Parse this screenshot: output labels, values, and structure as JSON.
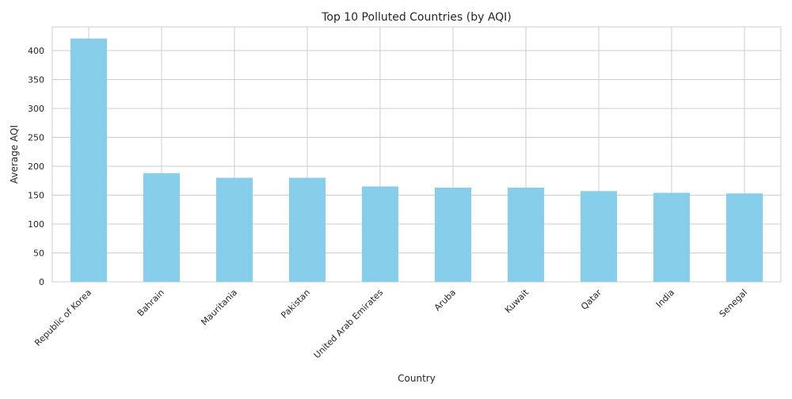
{
  "chart_data": {
    "type": "bar",
    "title": "Top 10 Polluted Countries (by AQI)",
    "xlabel": "Country",
    "ylabel": "Average AQI",
    "categories": [
      "Republic of Korea",
      "Bahrain",
      "Mauritania",
      "Pakistan",
      "United Arab Emirates",
      "Aruba",
      "Kuwait",
      "Qatar",
      "India",
      "Senegal"
    ],
    "values": [
      421,
      188,
      180,
      180,
      165,
      163,
      163,
      157,
      154,
      153
    ],
    "ylim": [
      0,
      441
    ],
    "yticks": [
      0,
      50,
      100,
      150,
      200,
      250,
      300,
      350,
      400
    ],
    "bar_color": "#87ceeb",
    "grid": true
  }
}
